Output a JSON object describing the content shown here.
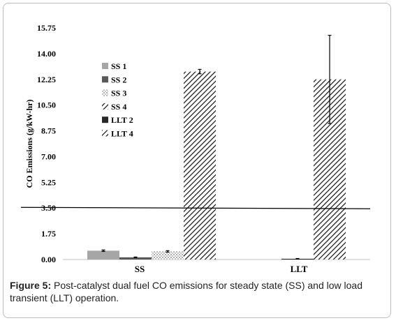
{
  "caption": {
    "label": "Figure 5:",
    "text": "Post-catalyst dual fuel CO emissions for steady state (SS) and low load transient (LLT) operation."
  },
  "chart_data": {
    "type": "bar",
    "title": "",
    "xlabel": "",
    "ylabel": "CO Emissions (g/kW-hr)",
    "ylim": [
      0,
      15.75
    ],
    "yticks": [
      "0.00",
      "1.75",
      "3.50",
      "5.25",
      "7.00",
      "8.75",
      "10.50",
      "12.25",
      "14.00",
      "15.75"
    ],
    "categories": [
      "SS",
      "LLT"
    ],
    "legend_position": "top-left",
    "reference_line": 3.5,
    "series": [
      {
        "name": "SS 1",
        "pattern": "solid-light-gray",
        "values": [
          0.6,
          null
        ],
        "error": [
          0.05,
          null
        ]
      },
      {
        "name": "SS 2",
        "pattern": "solid-dark-gray",
        "values": [
          0.15,
          null
        ],
        "error": [
          0.02,
          null
        ]
      },
      {
        "name": "SS 3",
        "pattern": "dotted",
        "values": [
          0.55,
          null
        ],
        "error": [
          0.05,
          null
        ]
      },
      {
        "name": "SS 4",
        "pattern": "diagonal-hatch",
        "values": [
          12.78,
          null
        ],
        "error": [
          0.15,
          null
        ]
      },
      {
        "name": "LLT 2",
        "pattern": "solid-black",
        "values": [
          null,
          0.05
        ],
        "error": [
          null,
          0.02
        ]
      },
      {
        "name": "LLT 4",
        "pattern": "diagonal-hatch",
        "values": [
          null,
          12.25
        ],
        "error": [
          null,
          3.0
        ]
      }
    ]
  }
}
